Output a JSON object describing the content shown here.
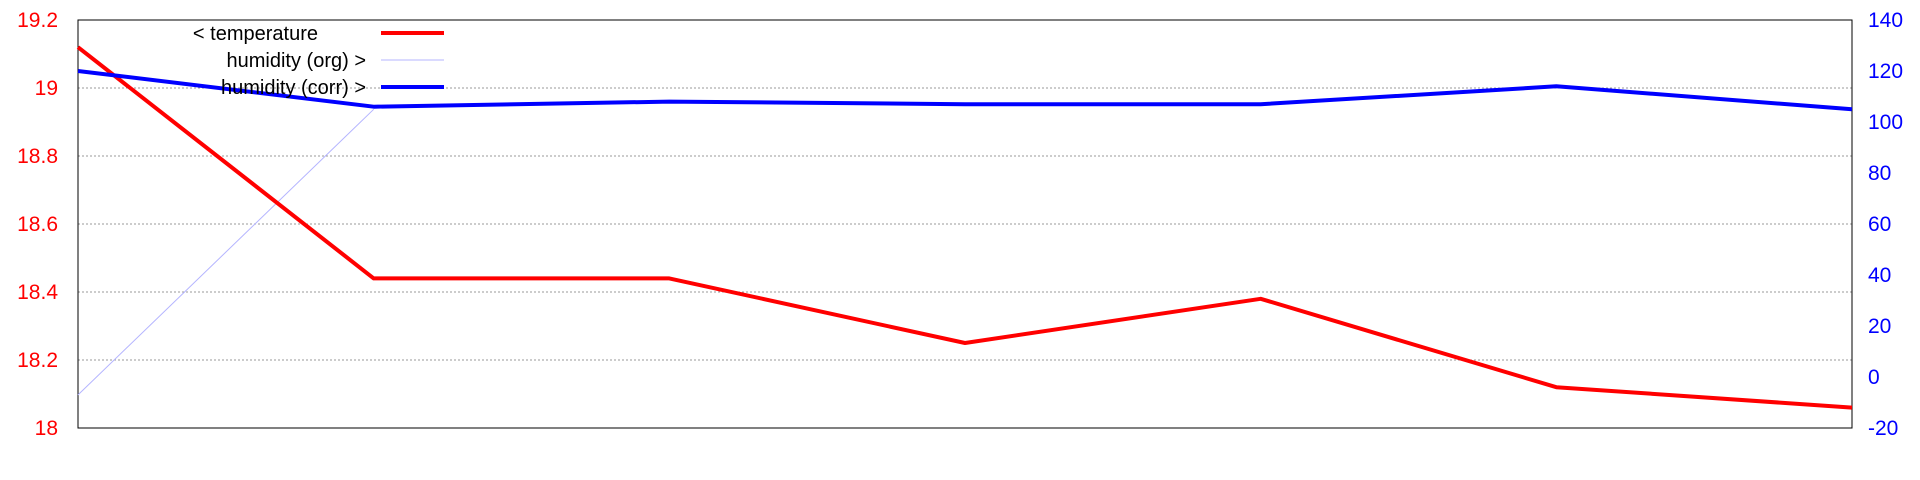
{
  "chart_data": {
    "type": "line",
    "x": [
      0,
      1,
      2,
      3,
      4,
      5,
      6
    ],
    "y_left_ticks": [
      "18",
      "18.2",
      "18.4",
      "18.6",
      "18.8",
      "19",
      "19.2"
    ],
    "y_right_ticks": [
      "-20",
      "0",
      "20",
      "40",
      "60",
      "80",
      "100",
      "120",
      "140"
    ],
    "ylim_left": [
      18,
      19.2
    ],
    "ylim_right": [
      -20,
      140
    ],
    "grid": true,
    "legend_position": "top-left",
    "series": [
      {
        "name": "< temperature",
        "axis": "left",
        "color": "#ff0000",
        "x": [
          0,
          1,
          2,
          3,
          4,
          5,
          6
        ],
        "values": [
          19.12,
          18.44,
          18.44,
          18.25,
          18.38,
          18.12,
          18.06
        ]
      },
      {
        "name": "humidity (org) >",
        "axis": "right",
        "color": "#b4b4ff",
        "x": [
          0,
          1
        ],
        "values": [
          -7,
          105
        ]
      },
      {
        "name": "humidity (corr) >",
        "axis": "right",
        "color": "#0000ff",
        "x": [
          0,
          1,
          2,
          3,
          4,
          5,
          6
        ],
        "values": [
          120,
          106,
          108,
          107,
          107,
          114,
          105
        ]
      }
    ]
  }
}
